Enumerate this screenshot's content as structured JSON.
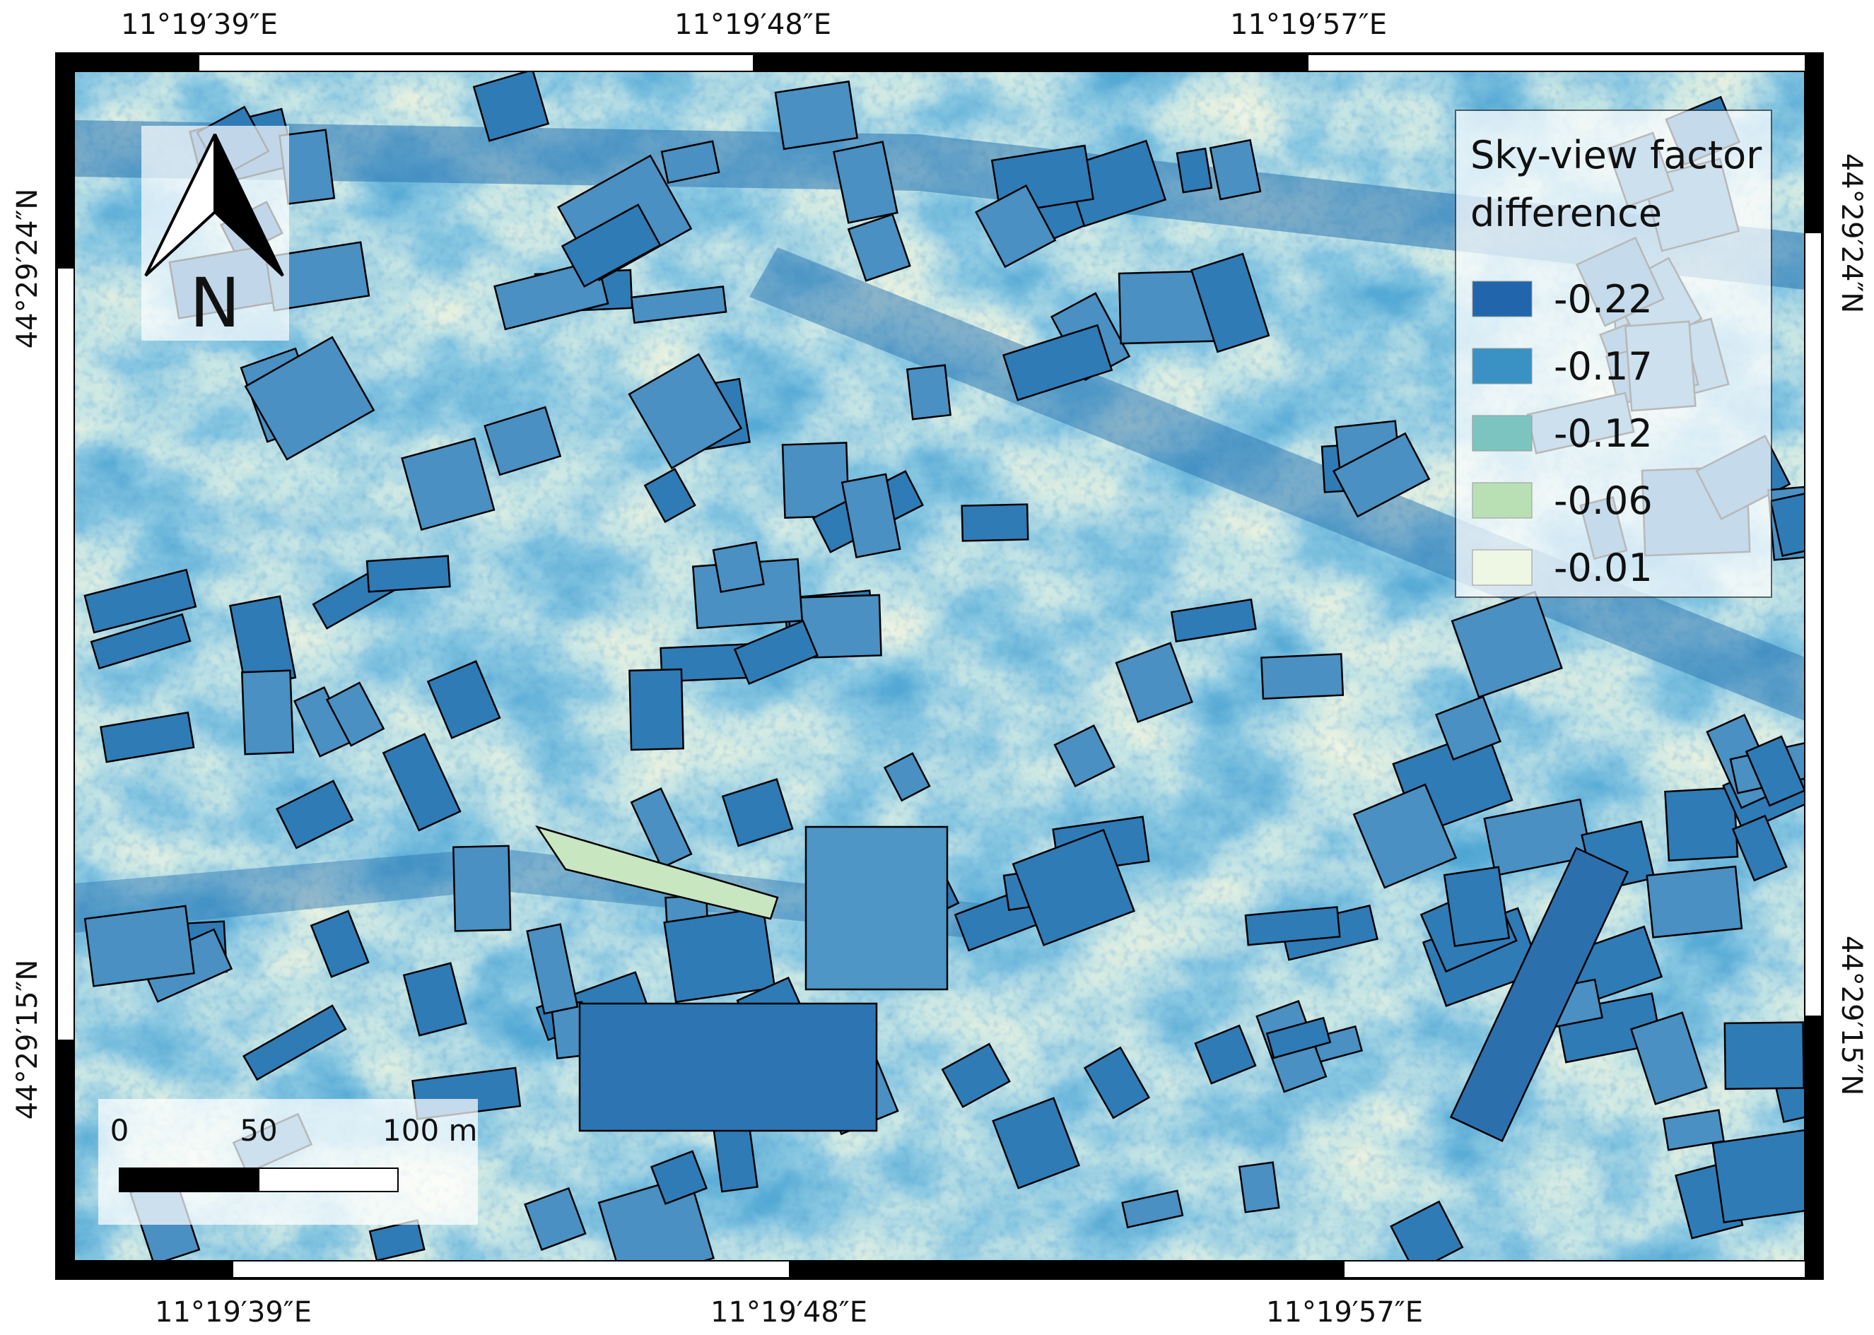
{
  "map": {
    "top_labels": [
      "11°19′39″E",
      "11°19′48″E",
      "11°19′57″E"
    ],
    "bottom_labels": [
      "11°19′39″E",
      "11°19′48″E",
      "11°19′57″E"
    ],
    "left_labels": [
      "44°29′24″N",
      "44°29′15″N"
    ],
    "right_labels": [
      "44°29′24″N",
      "44°29′15″N"
    ],
    "north_arrow": "N",
    "legend": {
      "title_lines": [
        "Sky-view factor",
        "difference"
      ],
      "items": [
        {
          "label": -0.22,
          "color": "#2166ac"
        },
        {
          "label": -0.17,
          "color": "#3a92c4"
        },
        {
          "label": -0.12,
          "color": "#7cc4c0"
        },
        {
          "label": -0.06,
          "color": "#b8e0b4"
        },
        {
          "label": -0.01,
          "color": "#eef7e4"
        }
      ]
    },
    "scale_bar": {
      "ticks": [
        0,
        50,
        {
          "value": 100,
          "label": "100 m"
        }
      ]
    }
  }
}
